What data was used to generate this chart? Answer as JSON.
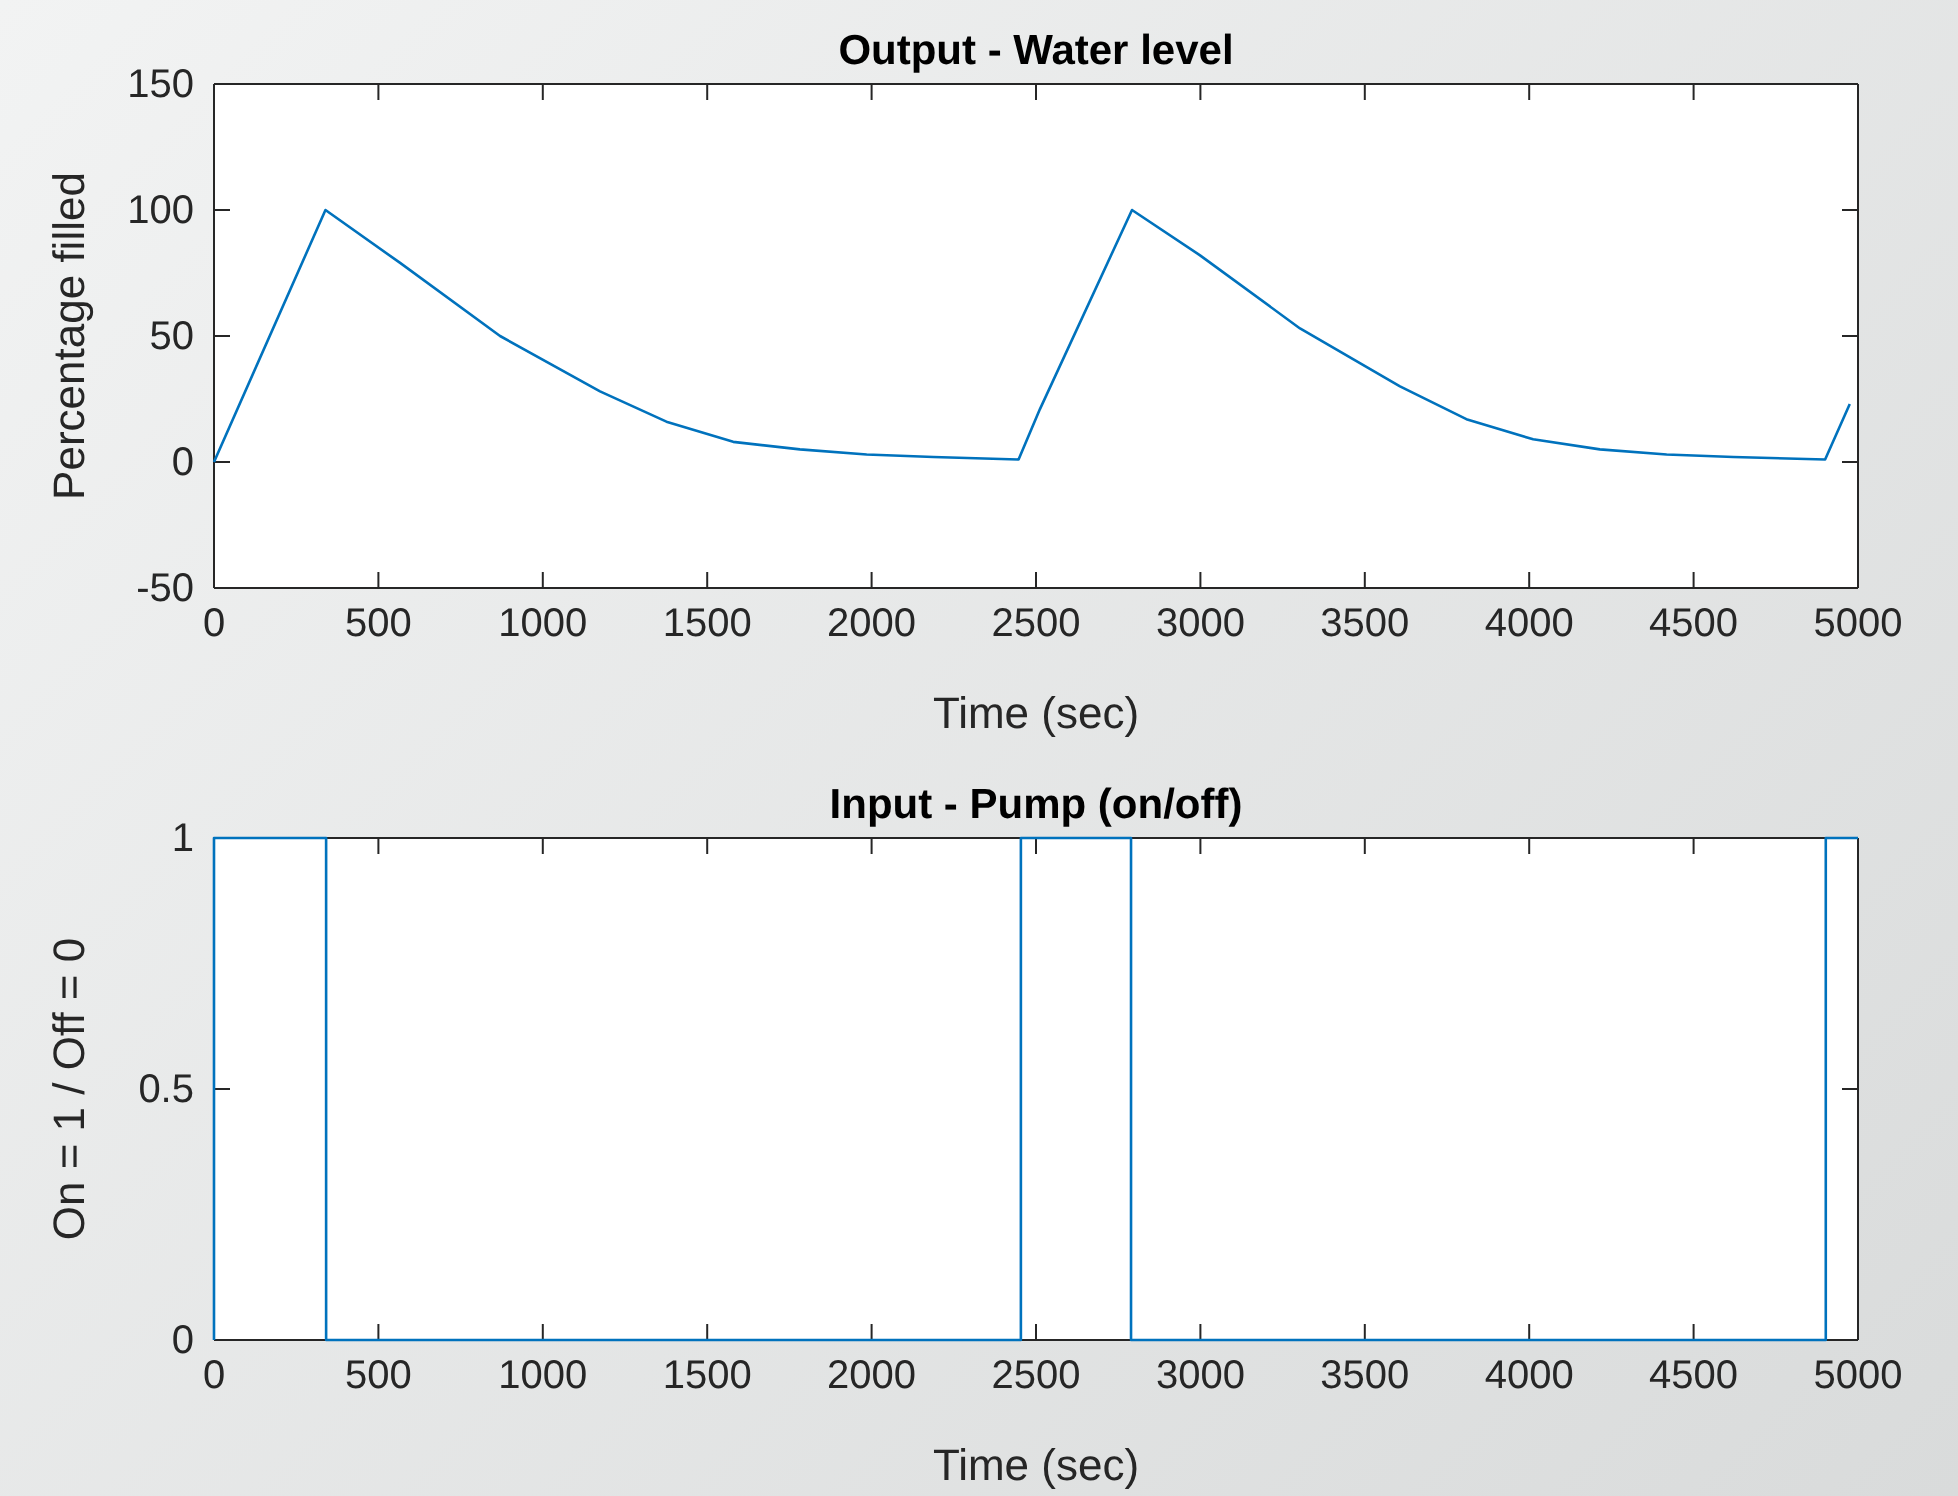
{
  "chart_data": [
    {
      "type": "line",
      "title": "Output - Water level",
      "xlabel": "Time (sec)",
      "ylabel": "Percentage filled",
      "xlim": [
        0,
        5000
      ],
      "ylim": [
        -50,
        150
      ],
      "xticks": [
        0,
        500,
        1000,
        1500,
        2000,
        2500,
        3000,
        3500,
        4000,
        4500,
        5000
      ],
      "yticks": [
        -50,
        0,
        50,
        100,
        150
      ],
      "grid": false,
      "series": [
        {
          "color": "#0072bd",
          "x": [
            0,
            339,
            566,
            870,
            1174,
            1376,
            1579,
            1782,
            1985,
            2188,
            2447,
            2512,
            2792,
            2999,
            3303,
            3607,
            3809,
            4012,
            4215,
            4418,
            4621,
            4900,
            4975
          ],
          "values": [
            0,
            100,
            79,
            50,
            28,
            16,
            8,
            5,
            3,
            2,
            1,
            21,
            100,
            82,
            53,
            30,
            17,
            9,
            5,
            3,
            2,
            1,
            23
          ]
        }
      ]
    },
    {
      "type": "line",
      "title": "Input - Pump (on/off)",
      "xlabel": "Time (sec)",
      "ylabel": "On = 1 / Off = 0",
      "xlim": [
        0,
        5000
      ],
      "ylim": [
        0,
        1
      ],
      "xticks": [
        0,
        500,
        1000,
        1500,
        2000,
        2500,
        3000,
        3500,
        4000,
        4500,
        5000
      ],
      "yticks": [
        0,
        0.5,
        1
      ],
      "grid": false,
      "series": [
        {
          "color": "#0072bd",
          "x": [
            0,
            0,
            341,
            341,
            2454,
            2454,
            2789,
            2789,
            4902,
            4902,
            5000
          ],
          "values": [
            0,
            1,
            1,
            0,
            0,
            1,
            1,
            0,
            0,
            1,
            1
          ]
        }
      ]
    }
  ]
}
